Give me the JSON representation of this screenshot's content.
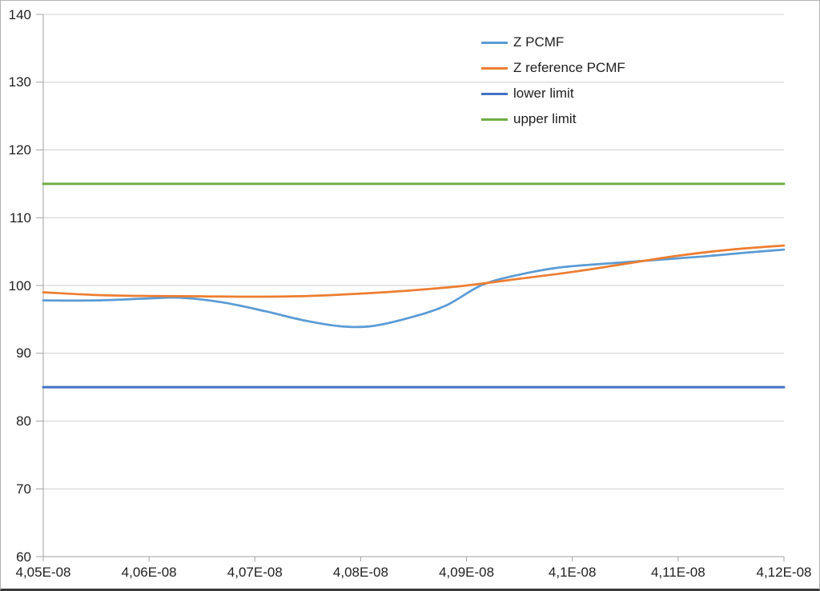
{
  "chart_data": {
    "type": "line",
    "title": "",
    "xlabel": "",
    "ylabel": "",
    "x_exponent_format": "E-08",
    "x_range": [
      4.05,
      4.12
    ],
    "y_range": [
      60,
      140
    ],
    "grid": true,
    "x_ticks": [
      {
        "value": 4.05,
        "label": "4,05E-08"
      },
      {
        "value": 4.06,
        "label": "4,06E-08"
      },
      {
        "value": 4.07,
        "label": "4,07E-08"
      },
      {
        "value": 4.08,
        "label": "4,08E-08"
      },
      {
        "value": 4.09,
        "label": "4,09E-08"
      },
      {
        "value": 4.1,
        "label": "4,1E-08"
      },
      {
        "value": 4.11,
        "label": "4,11E-08"
      },
      {
        "value": 4.12,
        "label": "4,12E-08"
      }
    ],
    "y_ticks": [
      {
        "value": 60,
        "label": "60"
      },
      {
        "value": 70,
        "label": "70"
      },
      {
        "value": 80,
        "label": "80"
      },
      {
        "value": 90,
        "label": "90"
      },
      {
        "value": 100,
        "label": "100"
      },
      {
        "value": 110,
        "label": "110"
      },
      {
        "value": 120,
        "label": "120"
      },
      {
        "value": 130,
        "label": "130"
      },
      {
        "value": 140,
        "label": "140"
      }
    ],
    "legend_position": "top-center",
    "series": [
      {
        "name": "Z PCMF",
        "color": "#5B9BD5",
        "stroke_width": 2.75,
        "smooth": true,
        "points": [
          [
            4.05,
            97.8
          ],
          [
            4.055,
            97.8
          ],
          [
            4.06,
            98.1
          ],
          [
            4.063,
            98.2
          ],
          [
            4.067,
            97.5
          ],
          [
            4.071,
            96.2
          ],
          [
            4.0745,
            94.9
          ],
          [
            4.078,
            94.0
          ],
          [
            4.081,
            94.0
          ],
          [
            4.0845,
            95.2
          ],
          [
            4.088,
            97.0
          ],
          [
            4.0915,
            100.1
          ],
          [
            4.095,
            101.6
          ],
          [
            4.0985,
            102.6
          ],
          [
            4.102,
            103.1
          ],
          [
            4.1055,
            103.5
          ],
          [
            4.109,
            103.9
          ],
          [
            4.1125,
            104.3
          ],
          [
            4.116,
            104.8
          ],
          [
            4.12,
            105.3
          ]
        ]
      },
      {
        "name": "Z reference PCMF",
        "color": "#ED7D31",
        "stroke_width": 2.75,
        "smooth": true,
        "points": [
          [
            4.05,
            99.0
          ],
          [
            4.055,
            98.6
          ],
          [
            4.06,
            98.45
          ],
          [
            4.065,
            98.4
          ],
          [
            4.07,
            98.35
          ],
          [
            4.075,
            98.45
          ],
          [
            4.08,
            98.8
          ],
          [
            4.085,
            99.3
          ],
          [
            4.09,
            100.0
          ],
          [
            4.095,
            101.0
          ],
          [
            4.1,
            102.0
          ],
          [
            4.105,
            103.2
          ],
          [
            4.11,
            104.4
          ],
          [
            4.115,
            105.3
          ],
          [
            4.12,
            105.9
          ]
        ]
      },
      {
        "name": "lower limit",
        "color": "#4472C4",
        "stroke_width": 3,
        "smooth": false,
        "points": [
          [
            4.05,
            85
          ],
          [
            4.12,
            85
          ]
        ]
      },
      {
        "name": "upper limit",
        "color": "#70AD47",
        "stroke_width": 3,
        "smooth": false,
        "points": [
          [
            4.05,
            115
          ],
          [
            4.12,
            115
          ]
        ]
      }
    ],
    "style": {
      "gridline_color": "#cfcfcf",
      "axis_color": "#a0a0a0",
      "text_color": "#1f1f1f",
      "background": "#ffffff"
    }
  }
}
